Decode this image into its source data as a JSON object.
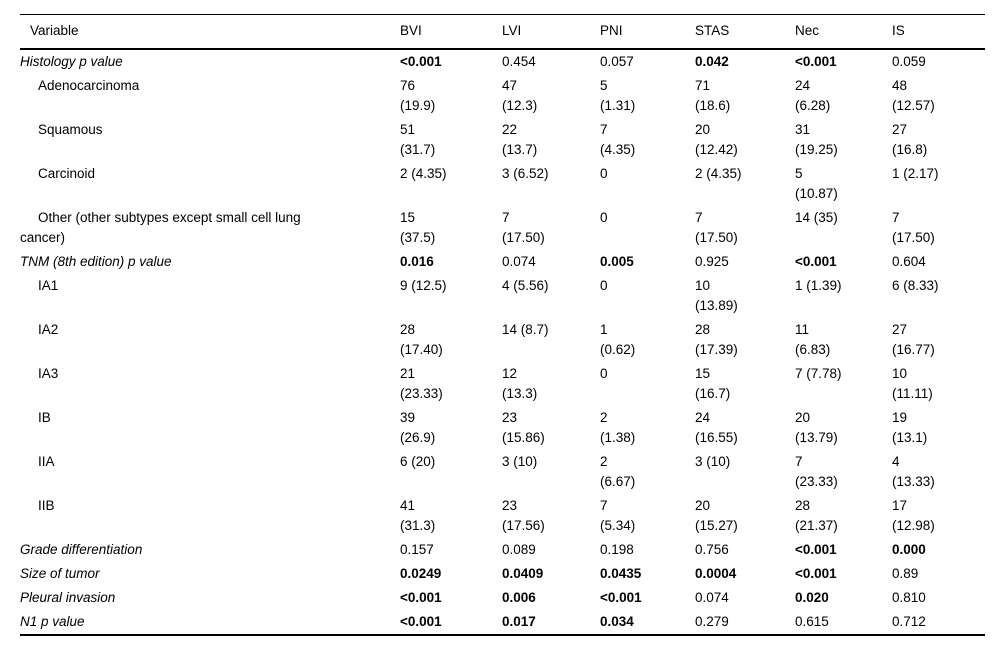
{
  "table": {
    "columns": [
      {
        "label": "Variable"
      },
      {
        "label": "BVI"
      },
      {
        "label": "LVI"
      },
      {
        "label": "PNI"
      },
      {
        "label": "STAS"
      },
      {
        "label": "Nec"
      },
      {
        "label": "IS"
      }
    ],
    "rows": [
      {
        "label": "Histology p value",
        "italic": true,
        "indent": false,
        "cells": [
          {
            "text": "<0.001",
            "bold": true
          },
          {
            "text": "0.454"
          },
          {
            "text": "0.057"
          },
          {
            "text": "0.042",
            "bold": true
          },
          {
            "text": "<0.001",
            "bold": true
          },
          {
            "text": "0.059"
          }
        ]
      },
      {
        "label": "Adenocarcinoma",
        "italic": false,
        "indent": true,
        "cells": [
          {
            "text": "76\n(19.9)"
          },
          {
            "text": "47\n(12.3)"
          },
          {
            "text": "5\n(1.31)"
          },
          {
            "text": "71\n(18.6)"
          },
          {
            "text": "24\n(6.28)"
          },
          {
            "text": "48\n(12.57)"
          }
        ]
      },
      {
        "label": "Squamous",
        "italic": false,
        "indent": true,
        "cells": [
          {
            "text": "51\n(31.7)"
          },
          {
            "text": "22\n(13.7)"
          },
          {
            "text": "7\n(4.35)"
          },
          {
            "text": "20\n(12.42)"
          },
          {
            "text": "31\n(19.25)"
          },
          {
            "text": "27\n(16.8)"
          }
        ]
      },
      {
        "label": "Carcinoid",
        "italic": false,
        "indent": true,
        "cells": [
          {
            "text": "2 (4.35)"
          },
          {
            "text": "3 (6.52)"
          },
          {
            "text": "0"
          },
          {
            "text": "2 (4.35)"
          },
          {
            "text": "5\n(10.87)"
          },
          {
            "text": "1 (2.17)"
          }
        ]
      },
      {
        "label": "Other (other subtypes except small cell lung\ncancer)",
        "italic": false,
        "indent": true,
        "cells": [
          {
            "text": "15\n(37.5)"
          },
          {
            "text": "7\n(17.50)"
          },
          {
            "text": "0"
          },
          {
            "text": "7\n(17.50)"
          },
          {
            "text": "14 (35)"
          },
          {
            "text": "7\n(17.50)"
          }
        ]
      },
      {
        "label": "TNM (8th edition) p value",
        "italic": true,
        "indent": false,
        "cells": [
          {
            "text": "0.016",
            "bold": true
          },
          {
            "text": "0.074"
          },
          {
            "text": "0.005",
            "bold": true
          },
          {
            "text": "0.925"
          },
          {
            "text": "<0.001",
            "bold": true
          },
          {
            "text": "0.604"
          }
        ]
      },
      {
        "label": "IA1",
        "italic": false,
        "indent": true,
        "cells": [
          {
            "text": "9 (12.5)"
          },
          {
            "text": "4 (5.56)"
          },
          {
            "text": "0"
          },
          {
            "text": "10\n(13.89)"
          },
          {
            "text": "1 (1.39)"
          },
          {
            "text": "6 (8.33)"
          }
        ]
      },
      {
        "label": "IA2",
        "italic": false,
        "indent": true,
        "cells": [
          {
            "text": "28\n(17.40)"
          },
          {
            "text": "14 (8.7)"
          },
          {
            "text": "1\n(0.62)"
          },
          {
            "text": "28\n(17.39)"
          },
          {
            "text": "11\n(6.83)"
          },
          {
            "text": "27\n(16.77)"
          }
        ]
      },
      {
        "label": "IA3",
        "italic": false,
        "indent": true,
        "cells": [
          {
            "text": "21\n(23.33)"
          },
          {
            "text": "12\n(13.3)"
          },
          {
            "text": "0"
          },
          {
            "text": "15\n(16.7)"
          },
          {
            "text": "7 (7.78)"
          },
          {
            "text": "10\n(11.11)"
          }
        ]
      },
      {
        "label": "IB",
        "italic": false,
        "indent": true,
        "cells": [
          {
            "text": "39\n(26.9)"
          },
          {
            "text": "23\n(15.86)"
          },
          {
            "text": "2\n(1.38)"
          },
          {
            "text": "24\n(16.55)"
          },
          {
            "text": "20\n(13.79)"
          },
          {
            "text": "19\n(13.1)"
          }
        ]
      },
      {
        "label": "IIA",
        "italic": false,
        "indent": true,
        "cells": [
          {
            "text": "6 (20)"
          },
          {
            "text": "3 (10)"
          },
          {
            "text": "2\n(6.67)"
          },
          {
            "text": "3 (10)"
          },
          {
            "text": "7\n(23.33)"
          },
          {
            "text": "4\n(13.33)"
          }
        ]
      },
      {
        "label": "IIB",
        "italic": false,
        "indent": true,
        "cells": [
          {
            "text": "41\n(31.3)"
          },
          {
            "text": "23\n(17.56)"
          },
          {
            "text": "7\n(5.34)"
          },
          {
            "text": "20\n(15.27)"
          },
          {
            "text": "28\n(21.37)"
          },
          {
            "text": "17\n(12.98)"
          }
        ]
      },
      {
        "label": "Grade differentiation",
        "italic": true,
        "indent": false,
        "cells": [
          {
            "text": "0.157"
          },
          {
            "text": "0.089"
          },
          {
            "text": "0.198"
          },
          {
            "text": "0.756"
          },
          {
            "text": "<0.001",
            "bold": true
          },
          {
            "text": "0.000",
            "bold": true
          }
        ]
      },
      {
        "label": "Size of tumor",
        "italic": true,
        "indent": false,
        "cells": [
          {
            "text": "0.0249",
            "bold": true
          },
          {
            "text": "0.0409",
            "bold": true
          },
          {
            "text": "0.0435",
            "bold": true
          },
          {
            "text": "0.0004",
            "bold": true
          },
          {
            "text": "<0.001",
            "bold": true
          },
          {
            "text": "0.89"
          }
        ]
      },
      {
        "label": "Pleural invasion",
        "italic": true,
        "indent": false,
        "cells": [
          {
            "text": "<0.001",
            "bold": true
          },
          {
            "text": "0.006",
            "bold": true
          },
          {
            "text": "<0.001",
            "bold": true
          },
          {
            "text": "0.074"
          },
          {
            "text": "0.020",
            "bold": true
          },
          {
            "text": "0.810"
          }
        ]
      },
      {
        "label": "N1 p value",
        "italic": true,
        "indent": false,
        "cells": [
          {
            "text": "<0.001",
            "bold": true
          },
          {
            "text": "0.017",
            "bold": true
          },
          {
            "text": "0.034",
            "bold": true
          },
          {
            "text": "0.279"
          },
          {
            "text": "0.615"
          },
          {
            "text": "0.712"
          }
        ]
      }
    ]
  }
}
